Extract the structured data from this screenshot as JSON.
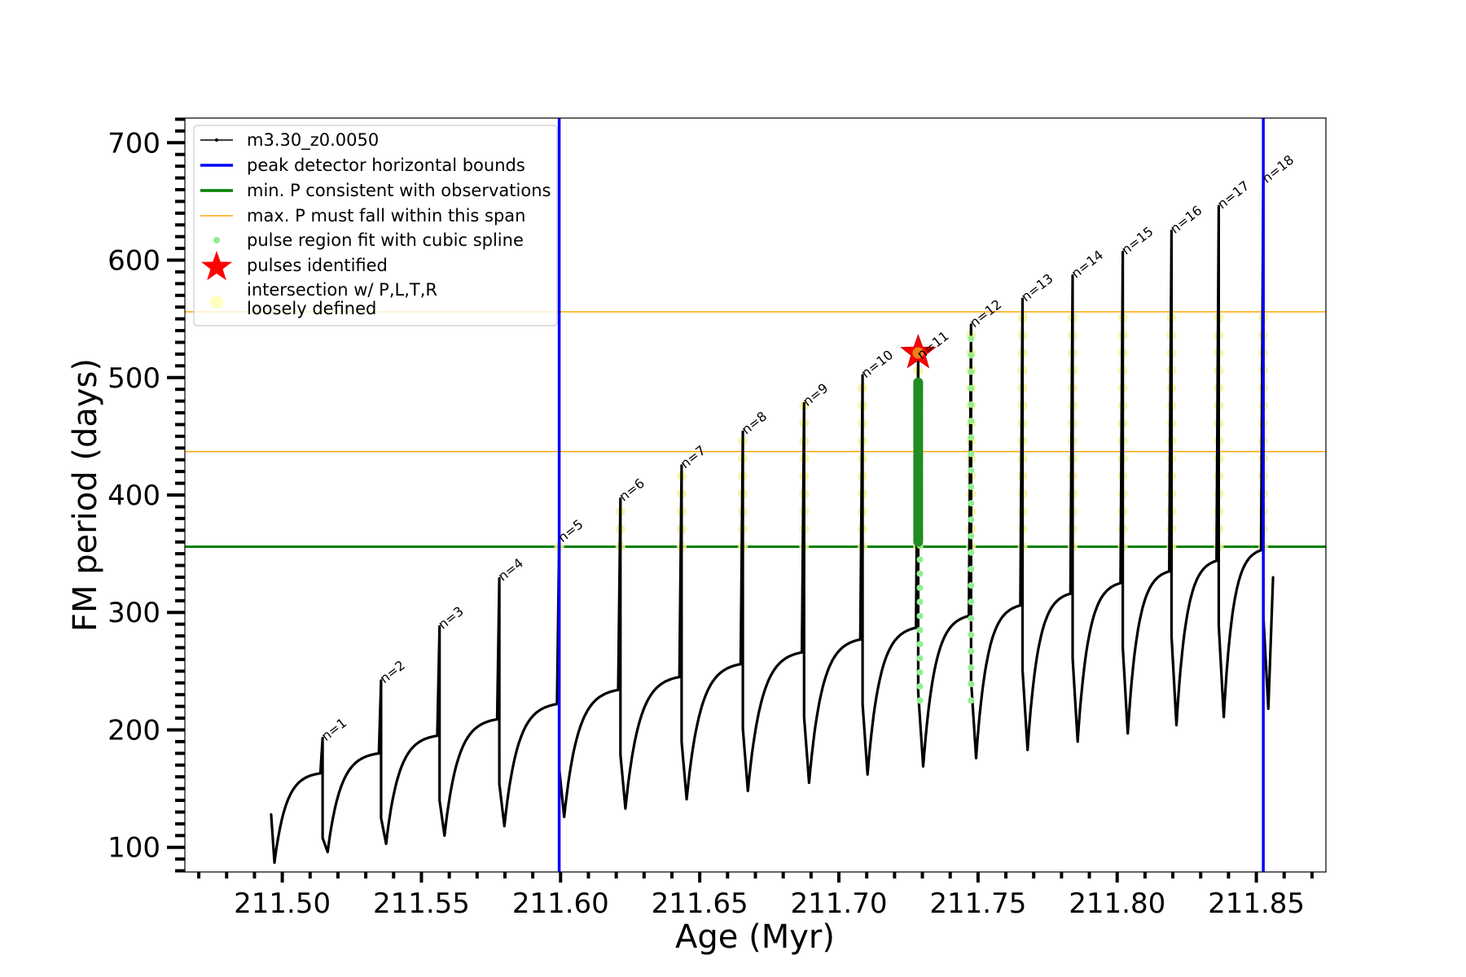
{
  "chart_data": {
    "type": "line",
    "title": "",
    "xlabel": "Age (Myr)",
    "ylabel": "FM period (days)",
    "xlim": [
      211.465,
      211.875
    ],
    "ylim": [
      79,
      721
    ],
    "x_ticks": [
      211.5,
      211.55,
      211.6,
      211.65,
      211.7,
      211.75,
      211.8,
      211.85
    ],
    "x_tick_labels": [
      "211.50",
      "211.55",
      "211.60",
      "211.65",
      "211.70",
      "211.75",
      "211.80",
      "211.85"
    ],
    "y_ticks": [
      100,
      200,
      300,
      400,
      500,
      600,
      700
    ],
    "y_tick_labels": [
      "100",
      "200",
      "300",
      "400",
      "500",
      "600",
      "700"
    ],
    "grid": false,
    "legend_position": "top-left",
    "legend": [
      {
        "label": "m3.30_z0.0050",
        "kind": "line-marker",
        "color": "#000000"
      },
      {
        "label": "peak detector horizontal bounds",
        "kind": "line",
        "color": "#0000ff"
      },
      {
        "label": "min. P consistent with observations",
        "kind": "line",
        "color": "#008000"
      },
      {
        "label": "max. P must fall within this span",
        "kind": "thin-line",
        "color": "#ffa500"
      },
      {
        "label": "pulse region fit with cubic spline",
        "kind": "dot",
        "color": "#90ee90"
      },
      {
        "label": "pulses identified",
        "kind": "star",
        "color": "#ff0000"
      },
      {
        "label": "intersection w/ P,L,T,R",
        "label2": "loosely defined",
        "kind": "big-dot",
        "color": "#ffffc0"
      }
    ],
    "series_name": "m3.30_z0.0050",
    "start": {
      "x": 211.496,
      "y": 128,
      "min": 87
    },
    "pulses": [
      {
        "n": 1,
        "x": 211.5145,
        "peak": 193,
        "pre": 163,
        "dip": 96
      },
      {
        "n": 2,
        "x": 211.5355,
        "peak": 242,
        "pre": 180,
        "dip": 103
      },
      {
        "n": 3,
        "x": 211.5565,
        "peak": 288,
        "pre": 195,
        "dip": 110
      },
      {
        "n": 4,
        "x": 211.578,
        "peak": 329,
        "pre": 209,
        "dip": 118
      },
      {
        "n": 5,
        "x": 211.5995,
        "peak": 362,
        "pre": 222,
        "dip": 126
      },
      {
        "n": 6,
        "x": 211.6215,
        "peak": 397,
        "pre": 234,
        "dip": 133
      },
      {
        "n": 7,
        "x": 211.6435,
        "peak": 425,
        "pre": 245,
        "dip": 141
      },
      {
        "n": 8,
        "x": 211.6655,
        "peak": 454,
        "pre": 256,
        "dip": 148
      },
      {
        "n": 9,
        "x": 211.6875,
        "peak": 478,
        "pre": 266,
        "dip": 155
      },
      {
        "n": 10,
        "x": 211.7085,
        "peak": 502,
        "pre": 277,
        "dip": 162
      },
      {
        "n": 11,
        "x": 211.7285,
        "peak": 518,
        "pre": 287,
        "dip": 169
      },
      {
        "n": 12,
        "x": 211.7475,
        "peak": 545,
        "pre": 297,
        "dip": 176
      },
      {
        "n": 13,
        "x": 211.766,
        "peak": 567,
        "pre": 306,
        "dip": 183
      },
      {
        "n": 14,
        "x": 211.784,
        "peak": 587,
        "pre": 316,
        "dip": 190
      },
      {
        "n": 15,
        "x": 211.802,
        "peak": 607,
        "pre": 325,
        "dip": 197
      },
      {
        "n": 16,
        "x": 211.8195,
        "peak": 625,
        "pre": 335,
        "dip": 204
      },
      {
        "n": 17,
        "x": 211.8365,
        "peak": 646,
        "pre": 344,
        "dip": 211
      },
      {
        "n": 18,
        "x": 211.8525,
        "peak": 668,
        "pre": 353,
        "dip": 218
      }
    ],
    "end": {
      "x": 211.856,
      "y": 330
    },
    "vertical_bounds": [
      211.5995,
      211.8525
    ],
    "min_period_line": 356,
    "max_period_span": [
      437,
      556
    ],
    "identified_pulse": {
      "n": 11,
      "x": 211.7285,
      "y": 521
    },
    "spline_fit_range": [
      225,
      500
    ],
    "colors": {
      "series": "#000000",
      "bounds": "#0000ff",
      "min_line": "#008000",
      "max_span": "#ffa500",
      "spline": "#90ee90",
      "spline_dark": "#228b22",
      "intersection": "#f5f5a0",
      "star": "#ff0000"
    }
  }
}
